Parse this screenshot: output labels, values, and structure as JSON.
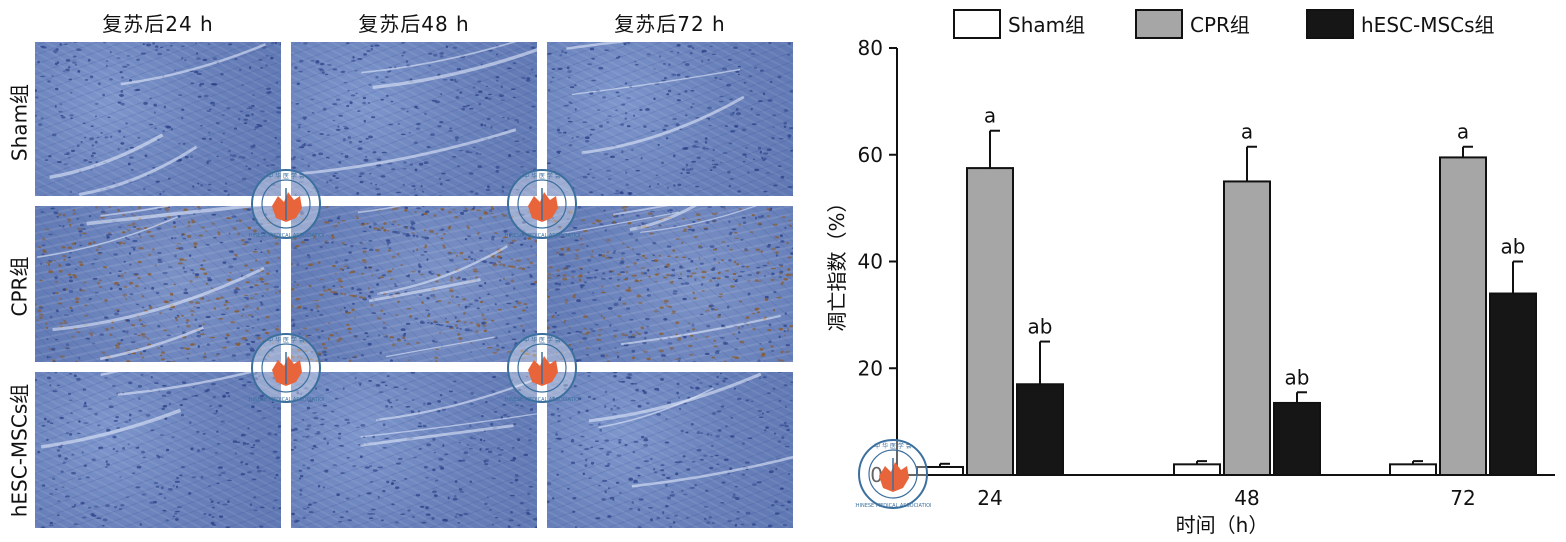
{
  "micrograph_panel": {
    "column_headers": [
      "复苏后24 h",
      "复苏后48 h",
      "复苏后72 h"
    ],
    "row_labels": [
      "Sham组",
      "CPR组",
      "hESC-MSCs组"
    ]
  },
  "watermark": {
    "description_text": "CHINESE MEDICAL ASSOCIATION",
    "top_chars": "中 华 医 学 会",
    "year": "1915"
  },
  "colors": {
    "tissue_blue": "#6f88c2",
    "nuclei_brown": "#8a5a2a",
    "seal_orange": "#e8643a",
    "seal_ring": "#3b6f9e",
    "bar_sham": "#ffffff",
    "bar_cpr": "#a6a6a6",
    "bar_hesc": "#161616"
  },
  "chart_data": {
    "type": "bar",
    "categories": [
      "24",
      "48",
      "72"
    ],
    "xlabel": "时间（h）",
    "ylabel": "凋亡指数（%）",
    "ylim": [
      0,
      80
    ],
    "yticks": [
      0,
      20,
      40,
      60,
      80
    ],
    "legend_position": "top",
    "series": [
      {
        "name": "Sham组",
        "values": [
          1.5,
          2.0,
          2.0
        ],
        "errors": [
          0.6,
          0.6,
          0.6
        ],
        "annotations": [
          "",
          "",
          ""
        ]
      },
      {
        "name": "CPR组",
        "values": [
          57.5,
          55.0,
          59.5
        ],
        "errors": [
          7.0,
          6.5,
          2.0
        ],
        "annotations": [
          "a",
          "a",
          "a"
        ]
      },
      {
        "name": "hESC-MSCs组",
        "values": [
          17.0,
          13.5,
          34.0
        ],
        "errors": [
          8.0,
          2.0,
          6.0
        ],
        "annotations": [
          "ab",
          "ab",
          "ab"
        ]
      }
    ]
  }
}
